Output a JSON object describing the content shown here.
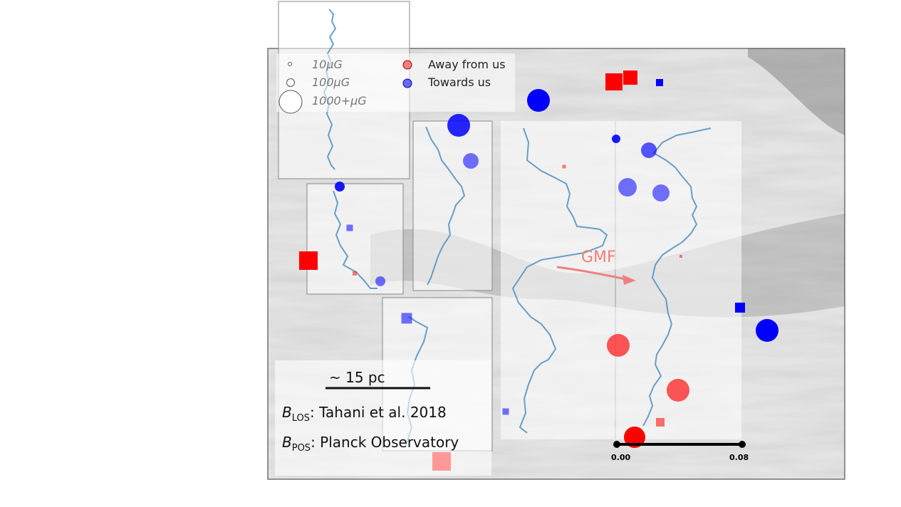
{
  "chart_data": {
    "type": "scatter",
    "legend_placement": "top-left",
    "legend": {
      "sizes": [
        "10μG",
        "100μG",
        "1000+μG"
      ],
      "directions": [
        {
          "label": "Away from us",
          "color": "#f08080"
        },
        {
          "label": "Towards us",
          "color": "#6a6af0"
        }
      ]
    },
    "annotations": {
      "gmf": "GMF",
      "scale_bar": "~ 15 pc",
      "blos_source": "Tahani et al. 2018",
      "bpos_source": "Planck Observatory"
    },
    "profile_axis": {
      "ticks": [
        "0.00",
        "0.08"
      ]
    },
    "colors": {
      "away": "#ff0000",
      "towards": "#0000ff",
      "profile": "#4f8fbf",
      "background": "#d8d8d8"
    }
  }
}
